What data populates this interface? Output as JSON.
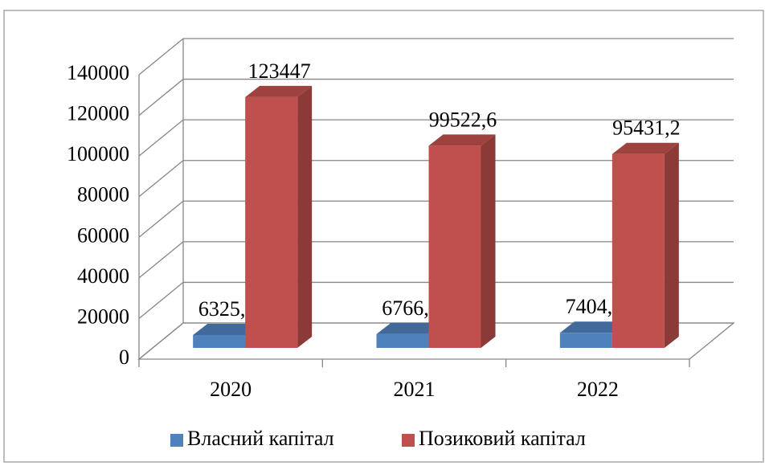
{
  "chart_data": {
    "type": "bar3d",
    "categories": [
      "2020",
      "2021",
      "2022"
    ],
    "series": [
      {
        "name": "Власний капітал",
        "color": "#4f81bd",
        "values": [
          6325.6,
          6766.9,
          7404.1
        ],
        "value_labels": [
          "6325,6",
          "6766,9",
          "7404,1"
        ]
      },
      {
        "name": "Позиковий капітал",
        "color": "#c0504d",
        "values": [
          123447,
          99522.6,
          95431.2
        ],
        "value_labels": [
          "123447",
          "99522,6",
          "95431,2"
        ]
      }
    ],
    "ylim": [
      0,
      140000
    ],
    "yticks": [
      0,
      20000,
      40000,
      60000,
      80000,
      100000,
      120000,
      140000
    ],
    "grid": true,
    "legend": "bottom"
  }
}
